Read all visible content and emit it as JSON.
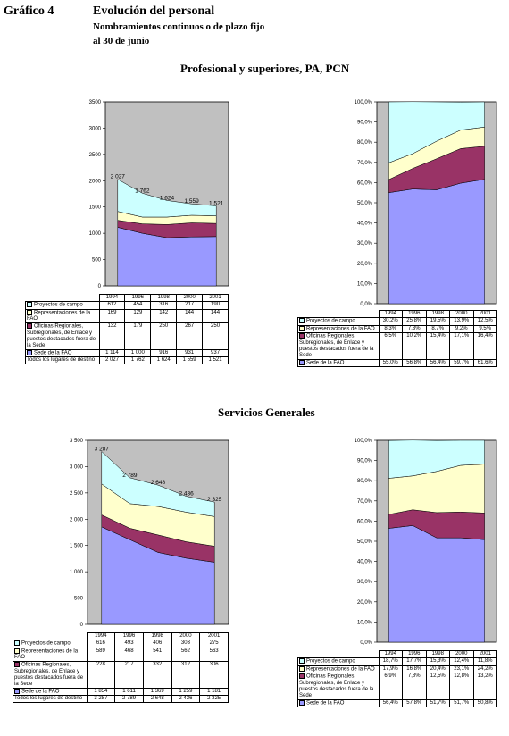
{
  "header": {
    "grafico": "Gráfico 4",
    "title": "Evolución del personal",
    "subtitle1": "Nombramientos continuos o de plazo fijo",
    "subtitle2": "al 30 de junio"
  },
  "sections": [
    {
      "title": "Profesional y superiores, PA, PCN"
    },
    {
      "title": "Servicios Generales"
    }
  ],
  "colors": {
    "sede": "#9999FF",
    "oficinas": "#993366",
    "representantes": "#FFFFCC",
    "proyectos": "#CCFFFF",
    "plot_bg": "#C0C0C0"
  },
  "chart_data": [
    {
      "id": "prof_abs",
      "type": "area",
      "stacked": true,
      "categories": [
        "1994",
        "1996",
        "1998",
        "2000",
        "2001"
      ],
      "ylim": [
        0,
        3500
      ],
      "yticks": [
        "0",
        "500",
        "1000",
        "1500",
        "2000",
        "2500",
        "3000",
        "3500"
      ],
      "series": [
        {
          "name": "Sede de la FAO",
          "values": [
            1114,
            1000,
            916,
            931,
            937
          ]
        },
        {
          "name": "Oficinas Regionales, Subregionales, de Enlace y puestos destacados fuera de la Sede",
          "values": [
            132,
            179,
            250,
            267,
            250
          ]
        },
        {
          "name": "Representaciones de la FAO",
          "values": [
            169,
            129,
            142,
            144,
            144
          ]
        },
        {
          "name": "Proyectos de campo",
          "values": [
            612,
            454,
            316,
            217,
            190
          ]
        }
      ],
      "table_values": [
        [
          "612",
          "454",
          "316",
          "217",
          "190"
        ],
        [
          "169",
          "129",
          "142",
          "144",
          "144"
        ],
        [
          "132",
          "179",
          "250",
          "267",
          "250"
        ],
        [
          "1 114",
          "1 000",
          "916",
          "931",
          "937"
        ],
        [
          "2 027",
          "1 762",
          "1 624",
          "1 559",
          "1 521"
        ]
      ],
      "total_labels": [
        "2 027",
        "1 762",
        "1 624",
        "1 559",
        "1 521"
      ],
      "row_labels": [
        "Proyectos de campo",
        "Representaciones de la FAO",
        "Oficinas Regionales, Subregionales, de Enlace y puestos destacados fuera de la Sede",
        "Sede de la FAO",
        "Todos los lugares de destino"
      ]
    },
    {
      "id": "prof_pct",
      "type": "area",
      "stacked": true,
      "categories": [
        "1994",
        "1996",
        "1998",
        "2000",
        "2001"
      ],
      "ylim": [
        0,
        100
      ],
      "yticks": [
        "0,0%",
        "10,0%",
        "20,0%",
        "30,0%",
        "40,0%",
        "50,0%",
        "60,0%",
        "70,0%",
        "80,0%",
        "90,0%",
        "100,0%"
      ],
      "series": [
        {
          "name": "Sede de la FAO",
          "values": [
            55.0,
            56.8,
            56.4,
            59.7,
            61.6
          ]
        },
        {
          "name": "Oficinas Regionales, Subregionales, de Enlace y puestos destacados fuera de la Sede",
          "values": [
            6.5,
            10.2,
            15.4,
            17.1,
            16.4
          ]
        },
        {
          "name": "Representaciones de la FAO",
          "values": [
            8.3,
            7.3,
            8.7,
            9.2,
            9.5
          ]
        },
        {
          "name": "Proyectos de campo",
          "values": [
            30.2,
            25.8,
            19.5,
            13.9,
            12.5
          ]
        }
      ],
      "table_values": [
        [
          "30,2%",
          "25,8%",
          "19,5%",
          "13,9%",
          "12,5%"
        ],
        [
          "8,3%",
          "7,3%",
          "8,7%",
          "9,2%",
          "9,5%"
        ],
        [
          "6,5%",
          "10,2%",
          "15,4%",
          "17,1%",
          "16,4%"
        ],
        [
          "55,0%",
          "56,8%",
          "56,4%",
          "59,7%",
          "61,6%"
        ]
      ],
      "row_labels": [
        "Proyectos de campo",
        "Representaciones de la FAO",
        "Oficinas Regionales, Subregionales, de Enlace y puestos destacados fuera de la Sede",
        "Sede de la FAO"
      ]
    },
    {
      "id": "sg_abs",
      "type": "area",
      "stacked": true,
      "categories": [
        "1994",
        "1996",
        "1998",
        "2000",
        "2001"
      ],
      "ylim": [
        0,
        3500
      ],
      "yticks": [
        "0",
        "500",
        "1 000",
        "1 500",
        "2 000",
        "2 500",
        "3 000",
        "3 500"
      ],
      "series": [
        {
          "name": "Sede de la FAO",
          "values": [
            1854,
            1611,
            1369,
            1259,
            1181
          ]
        },
        {
          "name": "Oficinas Regionales, Subregionales, de Enlace y puestos destacados fuera de la Sede",
          "values": [
            228,
            217,
            332,
            312,
            306
          ]
        },
        {
          "name": "Representaciones de la FAO",
          "values": [
            589,
            468,
            541,
            562,
            563
          ]
        },
        {
          "name": "Proyectos de campo",
          "values": [
            616,
            493,
            406,
            303,
            275
          ]
        }
      ],
      "table_values": [
        [
          "616",
          "493",
          "406",
          "303",
          "275"
        ],
        [
          "589",
          "468",
          "541",
          "562",
          "563"
        ],
        [
          "228",
          "217",
          "332",
          "312",
          "306"
        ],
        [
          "1 854",
          "1 611",
          "1 369",
          "1 259",
          "1 181"
        ],
        [
          "3 287",
          "2 789",
          "2 648",
          "2 436",
          "2 325"
        ]
      ],
      "total_labels": [
        "3 287",
        "2 789",
        "2 648",
        "2 436",
        "2 325"
      ],
      "row_labels": [
        "Proyectos de campo",
        "Representaciones de la FAO",
        "Oficinas Regionales, Subregionales, de Enlace y puestos destacados fuera de la Sede",
        "Sede de la FAO",
        "Todos los lugares de destino"
      ]
    },
    {
      "id": "sg_pct",
      "type": "area",
      "stacked": true,
      "categories": [
        "1994",
        "1996",
        "1998",
        "2000",
        "2001"
      ],
      "ylim": [
        0,
        100
      ],
      "yticks": [
        "0,0%",
        "10,0%",
        "20,0%",
        "30,0%",
        "40,0%",
        "50,0%",
        "60,0%",
        "70,0%",
        "80,0%",
        "90,0%",
        "100,0%"
      ],
      "series": [
        {
          "name": "Sede de la FAO",
          "values": [
            56.4,
            57.8,
            51.7,
            51.7,
            50.8
          ]
        },
        {
          "name": "Oficinas Regionales, Subregionales, de Enlace y puestos destacados fuera de la Sede",
          "values": [
            6.9,
            7.8,
            12.5,
            12.8,
            13.2
          ]
        },
        {
          "name": "Representaciones de la FAO",
          "values": [
            17.9,
            16.8,
            20.4,
            23.1,
            24.2
          ]
        },
        {
          "name": "Proyectos de campo",
          "values": [
            18.7,
            17.7,
            15.3,
            12.4,
            11.8
          ]
        }
      ],
      "table_values": [
        [
          "18,7%",
          "17,7%",
          "15,3%",
          "12,4%",
          "11,8%"
        ],
        [
          "17,9%",
          "16,8%",
          "20,4%",
          "23,1%",
          "24,2%"
        ],
        [
          "6,9%",
          "7,8%",
          "12,5%",
          "12,8%",
          "13,2%"
        ],
        [
          "56,4%",
          "57,8%",
          "51,7%",
          "51,7%",
          "50,8%"
        ]
      ],
      "row_labels": [
        "Proyectos de campo",
        "Representaciones de la FAO",
        "Oficinas Regionales, Subregionales, de Enlace y puestos destacados fuera de la Sede",
        "Sede de la FAO"
      ]
    }
  ]
}
